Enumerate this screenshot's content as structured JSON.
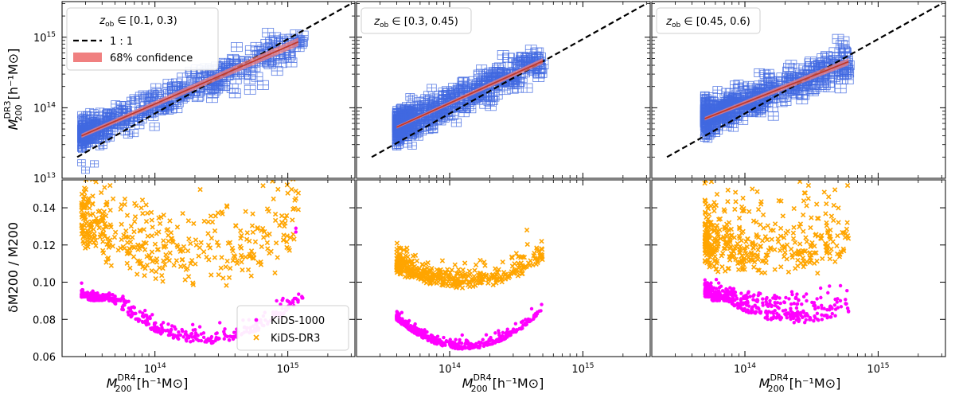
{
  "chart_data": {
    "type": "scatter",
    "description_layout": "3 columns x 2 rows; top row log-log mass comparison, bottom row relative mass error",
    "shared": {
      "x_label_main": "M",
      "x_label_sub": "200",
      "x_label_sup": "DR4",
      "x_label_units": "[h⁻¹M⊙]",
      "y_top_label_main": "M",
      "y_top_label_sub": "200",
      "y_top_label_sup": "DR3",
      "y_top_label_units": "[h⁻¹M⊙]",
      "y_bottom_label": "δM200 / M200",
      "x_scale": "log",
      "xlim": [
        20000000000000.0,
        3200000000000000.0
      ],
      "x_ticks": [
        {
          "value": 100000000000000.0,
          "label": "10",
          "sup": "14"
        },
        {
          "value": 1000000000000000.0,
          "label": "10",
          "sup": "15"
        }
      ],
      "top_ylim": [
        10000000000000.0,
        3200000000000000.0
      ],
      "top_y_ticks": [
        {
          "value": 10000000000000.0,
          "label": "10",
          "sup": "13"
        },
        {
          "value": 100000000000000.0,
          "label": "10",
          "sup": "14"
        },
        {
          "value": 1000000000000000.0,
          "label": "10",
          "sup": "15"
        }
      ],
      "bottom_ylim": [
        0.06,
        0.155
      ],
      "bottom_y_ticks": [
        0.06,
        0.08,
        0.1,
        0.12,
        0.14
      ],
      "bottom_y_tick_labels": [
        "0.06",
        "0.08",
        "0.10",
        "0.12",
        "0.14"
      ]
    },
    "legend_top": {
      "title": "z_ob ∈ [0.1, 0.3)",
      "entries": [
        {
          "label": "1 : 1",
          "style": "dashed-line",
          "color": "#000000"
        },
        {
          "label": "68% confidence",
          "style": "band",
          "color": "#f08080"
        }
      ]
    },
    "legend_bottom": {
      "entries": [
        {
          "label": "KiDS-1000",
          "marker": "dot",
          "color": "#ff00ff"
        },
        {
          "label": "KiDS-DR3",
          "marker": "x",
          "color": "#ffa500"
        }
      ]
    },
    "colors": {
      "dr3_markers": "#4169e1",
      "fit_line": "#c0392b",
      "band": "#f08080",
      "kids1000": "#ff00ff",
      "kidsdr3": "#ffa500"
    },
    "panels": [
      {
        "z_bin_label": "z_ob ∈ [0.1, 0.3)",
        "label_main": "z",
        "label_sub": "ob",
        "label_rest": " ∈ [0.1, 0.3)",
        "mass_range": [
          28000000000000.0,
          1300000000000000.0
        ],
        "top_scatter": {
          "n": 520,
          "ratio_scale": 1.5,
          "logsigma": 0.11,
          "extra_points": [
            [
              950000000000000.0,
              950000000000000.0
            ],
            [
              1150000000000000.0,
              1100000000000000.0
            ],
            [
              1200000000000000.0,
              850000000000000.0
            ],
            [
              400000000000000.0,
              160000000000000.0
            ],
            [
              520000000000000.0,
              180000000000000.0
            ],
            [
              650000000000000.0,
              210000000000000.0
            ],
            [
              30000000000000.0,
              13000000000000.0
            ],
            [
              35000000000000.0,
              16000000000000.0
            ]
          ]
        },
        "fit_line": {
          "x": [
            28000000000000.0,
            1200000000000000.0
          ],
          "y": [
            40000000000000.0,
            860000000000000.0
          ],
          "band_halfwidth_dex": 0.03
        },
        "dr3_error": {
          "base": 0.098,
          "min_at": 200000000000000.0,
          "curv": 0.03,
          "spread": 0.025,
          "extra_points": [
            [
              1150000000000000.0,
              0.149
            ],
            [
              1150000000000000.0,
              0.145
            ],
            [
              1200000000000000.0,
              0.139
            ],
            [
              36000000000000.0,
              0.154
            ],
            [
              800000000000000.0,
              0.105
            ]
          ]
        },
        "dr1000_error": {
          "base": 0.067,
          "min_at": 240000000000000.0,
          "curv": 0.045,
          "spread": 0.004,
          "max_at_low": 0.09,
          "extra_points": [
            [
              1150000000000000.0,
              0.127
            ],
            [
              1150000000000000.0,
              0.129
            ]
          ]
        },
        "show_legend_top": true,
        "show_legend_bottom": true
      },
      {
        "z_bin_label": "z_ob ∈ [0.3, 0.45)",
        "label_main": "z",
        "label_sub": "ob",
        "label_rest": " ∈ [0.3, 0.45)",
        "mass_range": [
          40000000000000.0,
          500000000000000.0
        ],
        "top_scatter": {
          "n": 600,
          "ratio_scale": 1.4,
          "logsigma": 0.12,
          "extra_points": [
            [
              380000000000000.0,
              480000000000000.0
            ],
            [
              450000000000000.0,
              500000000000000.0
            ],
            [
              480000000000000.0,
              350000000000000.0
            ]
          ]
        },
        "fit_line": {
          "x": [
            40000000000000.0,
            500000000000000.0
          ],
          "y": [
            53000000000000.0,
            460000000000000.0
          ],
          "band_halfwidth_dex": 0.02
        },
        "dr3_error": {
          "base": 0.097,
          "min_at": 120000000000000.0,
          "curv": 0.035,
          "spread": 0.006,
          "extra_points": [
            [
              490000000000000.0,
              0.122
            ],
            [
              490000000000000.0,
              0.118
            ],
            [
              380000000000000.0,
              0.128
            ]
          ]
        },
        "dr1000_error": {
          "base": 0.064,
          "min_at": 130000000000000.0,
          "curv": 0.06,
          "spread": 0.002,
          "max_at_low": 0.086,
          "extra_points": [
            [
              490000000000000.0,
              0.088
            ]
          ]
        },
        "show_legend_top": false,
        "show_legend_bottom": false
      },
      {
        "z_bin_label": "z_ob ∈ [0.45, 0.6)",
        "label_main": "z",
        "label_sub": "ob",
        "label_rest": " ∈ [0.45, 0.6)",
        "mass_range": [
          50000000000000.0,
          600000000000000.0
        ],
        "top_scatter": {
          "n": 560,
          "ratio_scale": 1.35,
          "logsigma": 0.12,
          "extra_points": [
            [
              500000000000000.0,
              950000000000000.0
            ],
            [
              550000000000000.0,
              880000000000000.0
            ],
            [
              600000000000000.0,
              400000000000000.0
            ]
          ]
        },
        "fit_line": {
          "x": [
            50000000000000.0,
            600000000000000.0
          ],
          "y": [
            70000000000000.0,
            450000000000000.0
          ],
          "band_halfwidth_dex": 0.025
        },
        "dr3_error": {
          "base": 0.104,
          "min_at": 150000000000000.0,
          "curv": 0.02,
          "spread": 0.02,
          "extra_points": [
            [
              590000000000000.0,
              0.152
            ],
            [
              590000000000000.0,
              0.125
            ],
            [
              300000000000000.0,
              0.152
            ],
            [
              280000000000000.0,
              0.148
            ]
          ]
        },
        "dr1000_error": {
          "base": 0.078,
          "min_at": 250000000000000.0,
          "curv": 0.04,
          "spread": 0.008,
          "max_at_low": 0.09,
          "extra_points": [
            [
              590000000000000.0,
              0.086
            ]
          ]
        },
        "show_legend_top": false,
        "show_legend_bottom": false
      }
    ]
  }
}
